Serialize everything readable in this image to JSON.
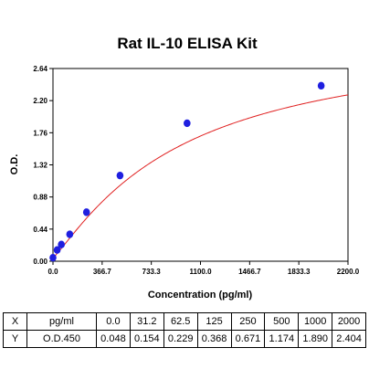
{
  "chart_data": {
    "type": "scatter",
    "title": "Rat IL-10 ELISA Kit",
    "xlabel": "Concentration (pg/ml)",
    "ylabel": "O.D.",
    "xlim": [
      0,
      2200
    ],
    "ylim": [
      0,
      2.64
    ],
    "x_ticks": [
      "0.0",
      "366.7",
      "733.3",
      "1100.0",
      "1466.7",
      "1833.3",
      "2200.0"
    ],
    "y_ticks": [
      "0.00",
      "0.44",
      "0.88",
      "1.32",
      "1.76",
      "2.20",
      "2.64"
    ],
    "grid": false,
    "fit_line": "4-parameter logistic",
    "point_color": "#1f1fe0",
    "curve_color": "#e02020",
    "x": [
      0.0,
      31.2,
      62.5,
      125,
      250,
      500,
      1000,
      2000
    ],
    "y": [
      0.048,
      0.154,
      0.229,
      0.368,
      0.671,
      1.174,
      1.89,
      2.404
    ]
  },
  "table": {
    "rows": [
      {
        "head": "X",
        "unit": "pg/ml",
        "values": [
          "0.0",
          "31.2",
          "62.5",
          "125",
          "250",
          "500",
          "1000",
          "2000"
        ]
      },
      {
        "head": "Y",
        "unit": "O.D.450",
        "values": [
          "0.048",
          "0.154",
          "0.229",
          "0.368",
          "0.671",
          "1.174",
          "1.890",
          "2.404"
        ]
      }
    ]
  }
}
